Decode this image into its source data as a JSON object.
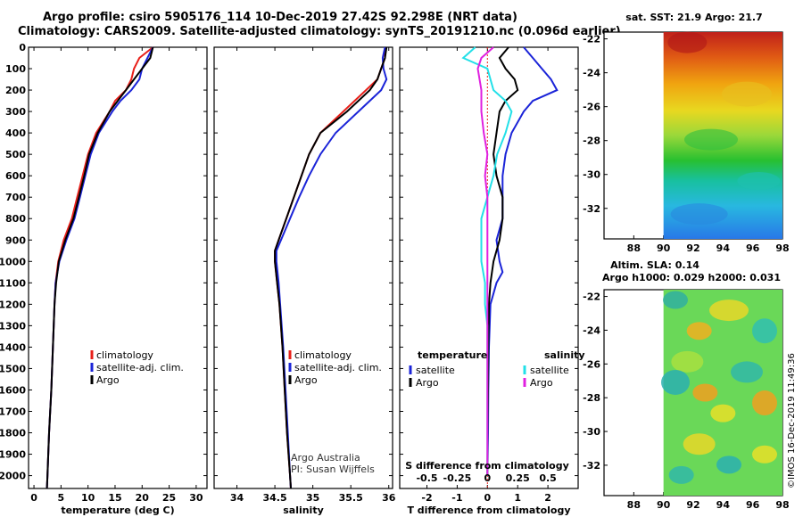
{
  "header": {
    "line1": "Argo profile: csiro 5905176_114 10-Dec-2019 27.42S 92.298E (NRT data)",
    "line2": "Climatology: CARS2009. Satellite-adjusted climatology: synTS_20191210.nc (0.096d earlier)"
  },
  "depth_ticks": [
    0,
    100,
    200,
    300,
    400,
    500,
    600,
    700,
    800,
    900,
    1000,
    1100,
    1200,
    1300,
    1400,
    1500,
    1600,
    1700,
    1800,
    1900,
    2000
  ],
  "colors": {
    "climatology": "#e8201a",
    "satellite": "#1b24d8",
    "argo": "#000000",
    "sal_sat": "#22e0e8",
    "sal_argo": "#e020e0"
  },
  "chart_data": [
    {
      "type": "line",
      "name": "temperature-profile",
      "xlabel": "temperature (deg C)",
      "ylabel": "depth",
      "xlim": [
        -1,
        32
      ],
      "ylim": [
        2060,
        0
      ],
      "xticks": [
        0,
        5,
        10,
        15,
        20,
        25,
        30
      ],
      "legend": [
        "climatology",
        "satellite-adj. clim.",
        "Argo"
      ],
      "series": [
        {
          "name": "climatology",
          "depth": [
            0,
            50,
            100,
            150,
            200,
            250,
            300,
            400,
            500,
            600,
            700,
            800,
            900,
            1000,
            1100,
            1200,
            1400,
            1600,
            1800,
            2000,
            2060
          ],
          "values": [
            22,
            19.5,
            18.5,
            18,
            17,
            15,
            14,
            11.5,
            10,
            9,
            8,
            7,
            5.5,
            4.5,
            4,
            3.8,
            3.5,
            3.2,
            2.8,
            2.5,
            2.4
          ]
        },
        {
          "name": "satellite-adj. clim.",
          "depth": [
            0,
            50,
            100,
            150,
            200,
            250,
            300,
            400,
            500,
            600,
            700,
            800,
            900,
            1000,
            1100,
            1200,
            1400,
            1600,
            1800,
            2000,
            2060
          ],
          "values": [
            22,
            21,
            20,
            19.5,
            18,
            16,
            14.5,
            12,
            10.5,
            9.5,
            8.5,
            7.5,
            6,
            4.7,
            4,
            3.8,
            3.5,
            3.2,
            2.8,
            2.5,
            2.4
          ]
        },
        {
          "name": "Argo",
          "depth": [
            0,
            50,
            100,
            150,
            200,
            250,
            300,
            400,
            500,
            600,
            700,
            800,
            900,
            1000,
            1100,
            1200,
            1400,
            1600,
            1800,
            2000,
            2060
          ],
          "values": [
            22,
            21.5,
            20,
            18.5,
            17,
            15.5,
            14,
            11.8,
            10.2,
            9.3,
            8.3,
            7.3,
            5.8,
            4.6,
            4.1,
            3.8,
            3.5,
            3.2,
            2.8,
            2.5,
            2.4
          ]
        }
      ]
    },
    {
      "type": "line",
      "name": "salinity-profile",
      "xlabel": "salinity",
      "ylabel": "depth",
      "xlim": [
        33.7,
        36.05
      ],
      "ylim": [
        2060,
        0
      ],
      "xticks": [
        34,
        34.5,
        35,
        35.5,
        36
      ],
      "xticklabels": [
        "34",
        "34.5",
        "35",
        "35.5",
        "36"
      ],
      "legend": [
        "climatology",
        "satellite-adj. clim.",
        "Argo"
      ],
      "annotation": [
        "Argo Australia",
        "PI: Susan Wijffels"
      ],
      "series": [
        {
          "name": "climatology",
          "depth": [
            0,
            50,
            100,
            150,
            200,
            300,
            400,
            500,
            600,
            700,
            800,
            900,
            950,
            1000,
            1100,
            1200,
            1400,
            1600,
            1800,
            2000,
            2060
          ],
          "values": [
            35.95,
            35.95,
            35.9,
            35.85,
            35.7,
            35.4,
            35.1,
            34.95,
            34.85,
            34.75,
            34.65,
            34.55,
            34.5,
            34.5,
            34.53,
            34.56,
            34.6,
            34.63,
            34.66,
            34.7,
            34.71
          ]
        },
        {
          "name": "satellite-adj. clim.",
          "depth": [
            0,
            50,
            100,
            150,
            200,
            300,
            400,
            500,
            600,
            700,
            800,
            900,
            950,
            1000,
            1100,
            1200,
            1400,
            1600,
            1800,
            2000,
            2060
          ],
          "values": [
            35.95,
            35.92,
            35.93,
            35.97,
            35.9,
            35.6,
            35.3,
            35.1,
            34.95,
            34.82,
            34.7,
            34.58,
            34.52,
            34.52,
            34.55,
            34.57,
            34.61,
            34.64,
            34.67,
            34.7,
            34.71
          ]
        },
        {
          "name": "Argo",
          "depth": [
            0,
            50,
            100,
            150,
            200,
            300,
            400,
            500,
            600,
            700,
            800,
            900,
            950,
            1000,
            1100,
            1200,
            1400,
            1600,
            1800,
            2000,
            2060
          ],
          "values": [
            35.97,
            35.95,
            35.9,
            35.85,
            35.75,
            35.45,
            35.1,
            34.95,
            34.85,
            34.75,
            34.65,
            34.55,
            34.5,
            34.5,
            34.53,
            34.56,
            34.6,
            34.63,
            34.66,
            34.7,
            34.71
          ]
        }
      ]
    },
    {
      "type": "line",
      "name": "difference-profile",
      "xlabel": "T difference from climatology",
      "xlabel_top": "S difference from climatology",
      "xlim": [
        -2.9,
        3.0
      ],
      "ylim": [
        2060,
        0
      ],
      "xticks": [
        -2,
        -1,
        0,
        1,
        2
      ],
      "xticks_sal": [
        -0.5,
        -0.25,
        0,
        0.25,
        0.5
      ],
      "xticklabels_sal": [
        "-0.5",
        "-0.25",
        "0",
        "0.25",
        "0.5"
      ],
      "legend": {
        "temperature_title": "temperature",
        "salinity_title": "salinity",
        "items": [
          "satellite",
          "Argo",
          "satellite",
          "Argo"
        ]
      },
      "series": [
        {
          "name": "temperature satellite",
          "depth": [
            0,
            50,
            100,
            150,
            200,
            250,
            300,
            400,
            500,
            600,
            700,
            800,
            900,
            1000,
            1050,
            1100,
            1200,
            1400,
            1600,
            1800,
            2000
          ],
          "values": [
            1.2,
            1.5,
            1.8,
            2.1,
            2.3,
            1.5,
            1.2,
            0.8,
            0.6,
            0.5,
            0.5,
            0.5,
            0.3,
            0.4,
            0.5,
            0.3,
            0.1,
            0.05,
            0.03,
            0.02,
            0.0
          ]
        },
        {
          "name": "temperature Argo",
          "depth": [
            0,
            50,
            100,
            150,
            200,
            250,
            300,
            400,
            500,
            600,
            700,
            800,
            900,
            1000,
            1100,
            1200,
            1400,
            1600,
            1800,
            2000
          ],
          "values": [
            0.7,
            0.4,
            0.6,
            0.9,
            1.0,
            0.6,
            0.4,
            0.3,
            0.2,
            0.3,
            0.5,
            0.5,
            0.4,
            0.2,
            0.1,
            0.05,
            0.03,
            0.02,
            0.01,
            0.0
          ]
        },
        {
          "name": "salinity satellite",
          "depth": [
            0,
            50,
            100,
            200,
            250,
            300,
            400,
            500,
            600,
            700,
            800,
            900,
            1000,
            1100,
            1200,
            1300,
            1400,
            1600,
            1800,
            2000
          ],
          "values": [
            -0.1,
            -0.2,
            0.0,
            0.05,
            0.15,
            0.2,
            0.15,
            0.08,
            0.05,
            0.0,
            -0.05,
            -0.05,
            -0.05,
            -0.02,
            -0.02,
            0.0,
            0.0,
            0.0,
            0.0,
            0.0
          ]
        },
        {
          "name": "salinity Argo",
          "depth": [
            0,
            50,
            100,
            200,
            300,
            400,
            500,
            600,
            700,
            800,
            900,
            1000,
            1100,
            1200,
            1400,
            1600,
            1800,
            2000
          ],
          "values": [
            0.05,
            -0.05,
            -0.08,
            -0.05,
            -0.05,
            -0.03,
            0.0,
            -0.02,
            0.0,
            0.0,
            0.0,
            0.0,
            0.0,
            0.0,
            0.0,
            0.0,
            0.0,
            0.0
          ]
        }
      ]
    },
    {
      "type": "heatmap",
      "name": "sst-map",
      "title": "sat. SST: 21.9 Argo: 21.7",
      "xticks": [
        88,
        90,
        92,
        94,
        96,
        98
      ],
      "yticks": [
        -22,
        -24,
        -26,
        -28,
        -30,
        -32
      ],
      "xlim": [
        86,
        98
      ],
      "ylim": [
        -33.8,
        -21.6
      ]
    },
    {
      "type": "heatmap",
      "name": "sla-map",
      "title_line1": "Altim. SLA: 0.14",
      "title_line2": "Argo h1000: 0.029 h2000: 0.031",
      "xticks": [
        88,
        90,
        92,
        94,
        96,
        98
      ],
      "yticks": [
        -22,
        -24,
        -26,
        -28,
        -30,
        -32
      ],
      "xlim": [
        86,
        98
      ],
      "ylim": [
        -33.8,
        -21.6
      ]
    }
  ],
  "footer": {
    "stamp": "©IMOS 16-Dec-2019 11:49:36"
  }
}
